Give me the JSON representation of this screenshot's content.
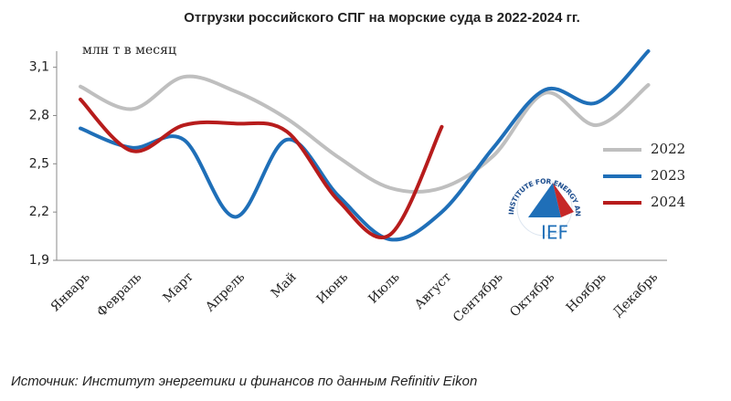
{
  "chart_data": {
    "type": "line",
    "title": "Отгрузки российского СПГ на морские суда в 2022-2024 гг.",
    "y_label": "млн т в месяц",
    "source": "Источник: Институт энергетики и финансов по данным Refinitiv Eikon",
    "logo": {
      "text": "IEF",
      "ring": "INSTITUTE FOR ENERGY AND FINANCE"
    },
    "categories": [
      "Январь",
      "Февраль",
      "Март",
      "Апрель",
      "Май",
      "Июнь",
      "Июль",
      "Август",
      "Сентябрь",
      "Октябрь",
      "Ноябрь",
      "Декабрь"
    ],
    "series": [
      {
        "name": "2022",
        "color": "#bfbfbf",
        "values": [
          2.98,
          2.84,
          3.04,
          2.95,
          2.78,
          2.54,
          2.35,
          2.35,
          2.55,
          2.94,
          2.74,
          2.99
        ]
      },
      {
        "name": "2023",
        "color": "#1f6fb8",
        "values": [
          2.72,
          2.6,
          2.65,
          2.17,
          2.65,
          2.3,
          2.03,
          2.2,
          2.6,
          2.96,
          2.88,
          3.2
        ]
      },
      {
        "name": "2024",
        "color": "#b71c1c",
        "values": [
          2.9,
          2.58,
          2.74,
          2.75,
          2.7,
          2.27,
          2.06,
          2.73,
          null,
          null,
          null,
          null
        ]
      }
    ],
    "ylim": [
      1.9,
      3.2
    ],
    "yticks": [
      {
        "value": 1.9,
        "label": "1,9"
      },
      {
        "value": 2.2,
        "label": "2,2"
      },
      {
        "value": 2.5,
        "label": "2,5"
      },
      {
        "value": 2.8,
        "label": "2,8"
      },
      {
        "value": 3.1,
        "label": "3,1"
      }
    ],
    "grid": false,
    "legend": "right"
  }
}
